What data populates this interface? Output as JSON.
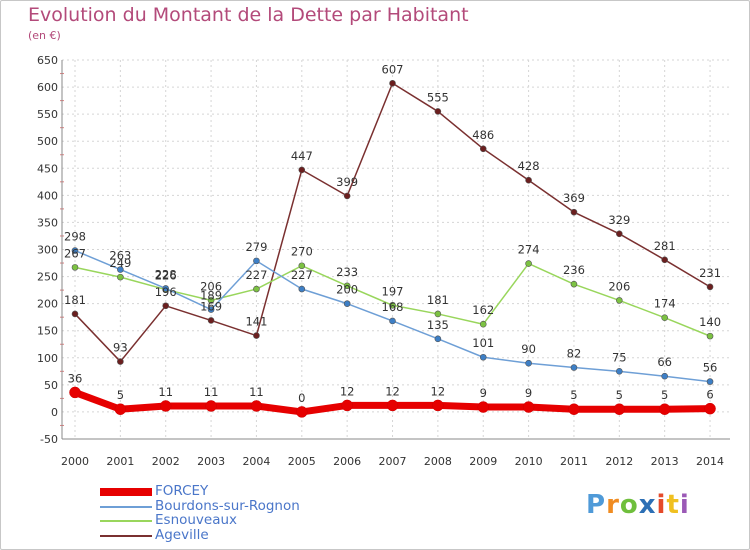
{
  "title": "Evolution du Montant de la Dette par Habitant",
  "subtitle": "(en €)",
  "brand": {
    "text": "Proxiti",
    "letter_colors": [
      "#4f9ad8",
      "#f08c22",
      "#6fbf3c",
      "#2c6fb5",
      "#e54a2a",
      "#f0c020",
      "#9b59b6"
    ]
  },
  "chart_data": {
    "type": "line",
    "title": "Evolution du Montant de la Dette par Habitant",
    "subtitle": "(en €)",
    "x": [
      "2000",
      "2001",
      "2002",
      "2003",
      "2004",
      "2005",
      "2006",
      "2007",
      "2008",
      "2009",
      "2010",
      "2011",
      "2012",
      "2013",
      "2014"
    ],
    "ylim": [
      -50,
      650
    ],
    "yticks": [
      "-50",
      "0",
      "50",
      "100",
      "150",
      "200",
      "250",
      "300",
      "350",
      "400",
      "450",
      "500",
      "550",
      "600",
      "650"
    ],
    "grid": true,
    "legend_position": "bottom-left",
    "series": [
      {
        "name": "FORCEY",
        "color": "#e60000",
        "marker_color": "#e60000",
        "values": [
          36,
          5,
          11,
          11,
          11,
          0,
          12,
          12,
          12,
          9,
          9,
          5,
          5,
          5,
          6
        ],
        "labels": [
          "36",
          "5",
          "11",
          "11",
          "11",
          "0",
          "12",
          "12",
          "12",
          "9",
          "9",
          "5",
          "5",
          "5",
          "6"
        ]
      },
      {
        "name": "Bourdons-sur-Rognon",
        "color": "#6e9fd6",
        "marker_color": "#3d7fc6",
        "values": [
          298,
          263,
          228,
          189,
          279,
          227,
          200,
          168,
          135,
          101,
          90,
          82,
          75,
          66,
          56
        ],
        "labels": [
          "298",
          "263",
          "228",
          "189",
          "279",
          "227",
          "200",
          "168",
          "135",
          "101",
          "90",
          "82",
          "75",
          "66",
          "56"
        ]
      },
      {
        "name": "Esnouveaux",
        "color": "#99d65c",
        "marker_color": "#7cc242",
        "values": [
          267,
          249,
          226,
          206,
          227,
          270,
          233,
          197,
          181,
          162,
          274,
          236,
          206,
          174,
          140
        ],
        "labels": [
          "267",
          "249",
          "226",
          "206",
          "227",
          "270",
          "233",
          "197",
          "181",
          "162",
          "274",
          "236",
          "206",
          "174",
          "140"
        ]
      },
      {
        "name": "Ageville",
        "color": "#7a3030",
        "marker_color": "#6b1f1f",
        "values": [
          181,
          93,
          196,
          169,
          141,
          447,
          399,
          607,
          555,
          486,
          428,
          369,
          329,
          281,
          231
        ],
        "labels": [
          "181",
          "93",
          "196",
          "169",
          "141",
          "447",
          "399",
          "607",
          "555",
          "486",
          "428",
          "369",
          "329",
          "281",
          "231"
        ]
      }
    ]
  }
}
